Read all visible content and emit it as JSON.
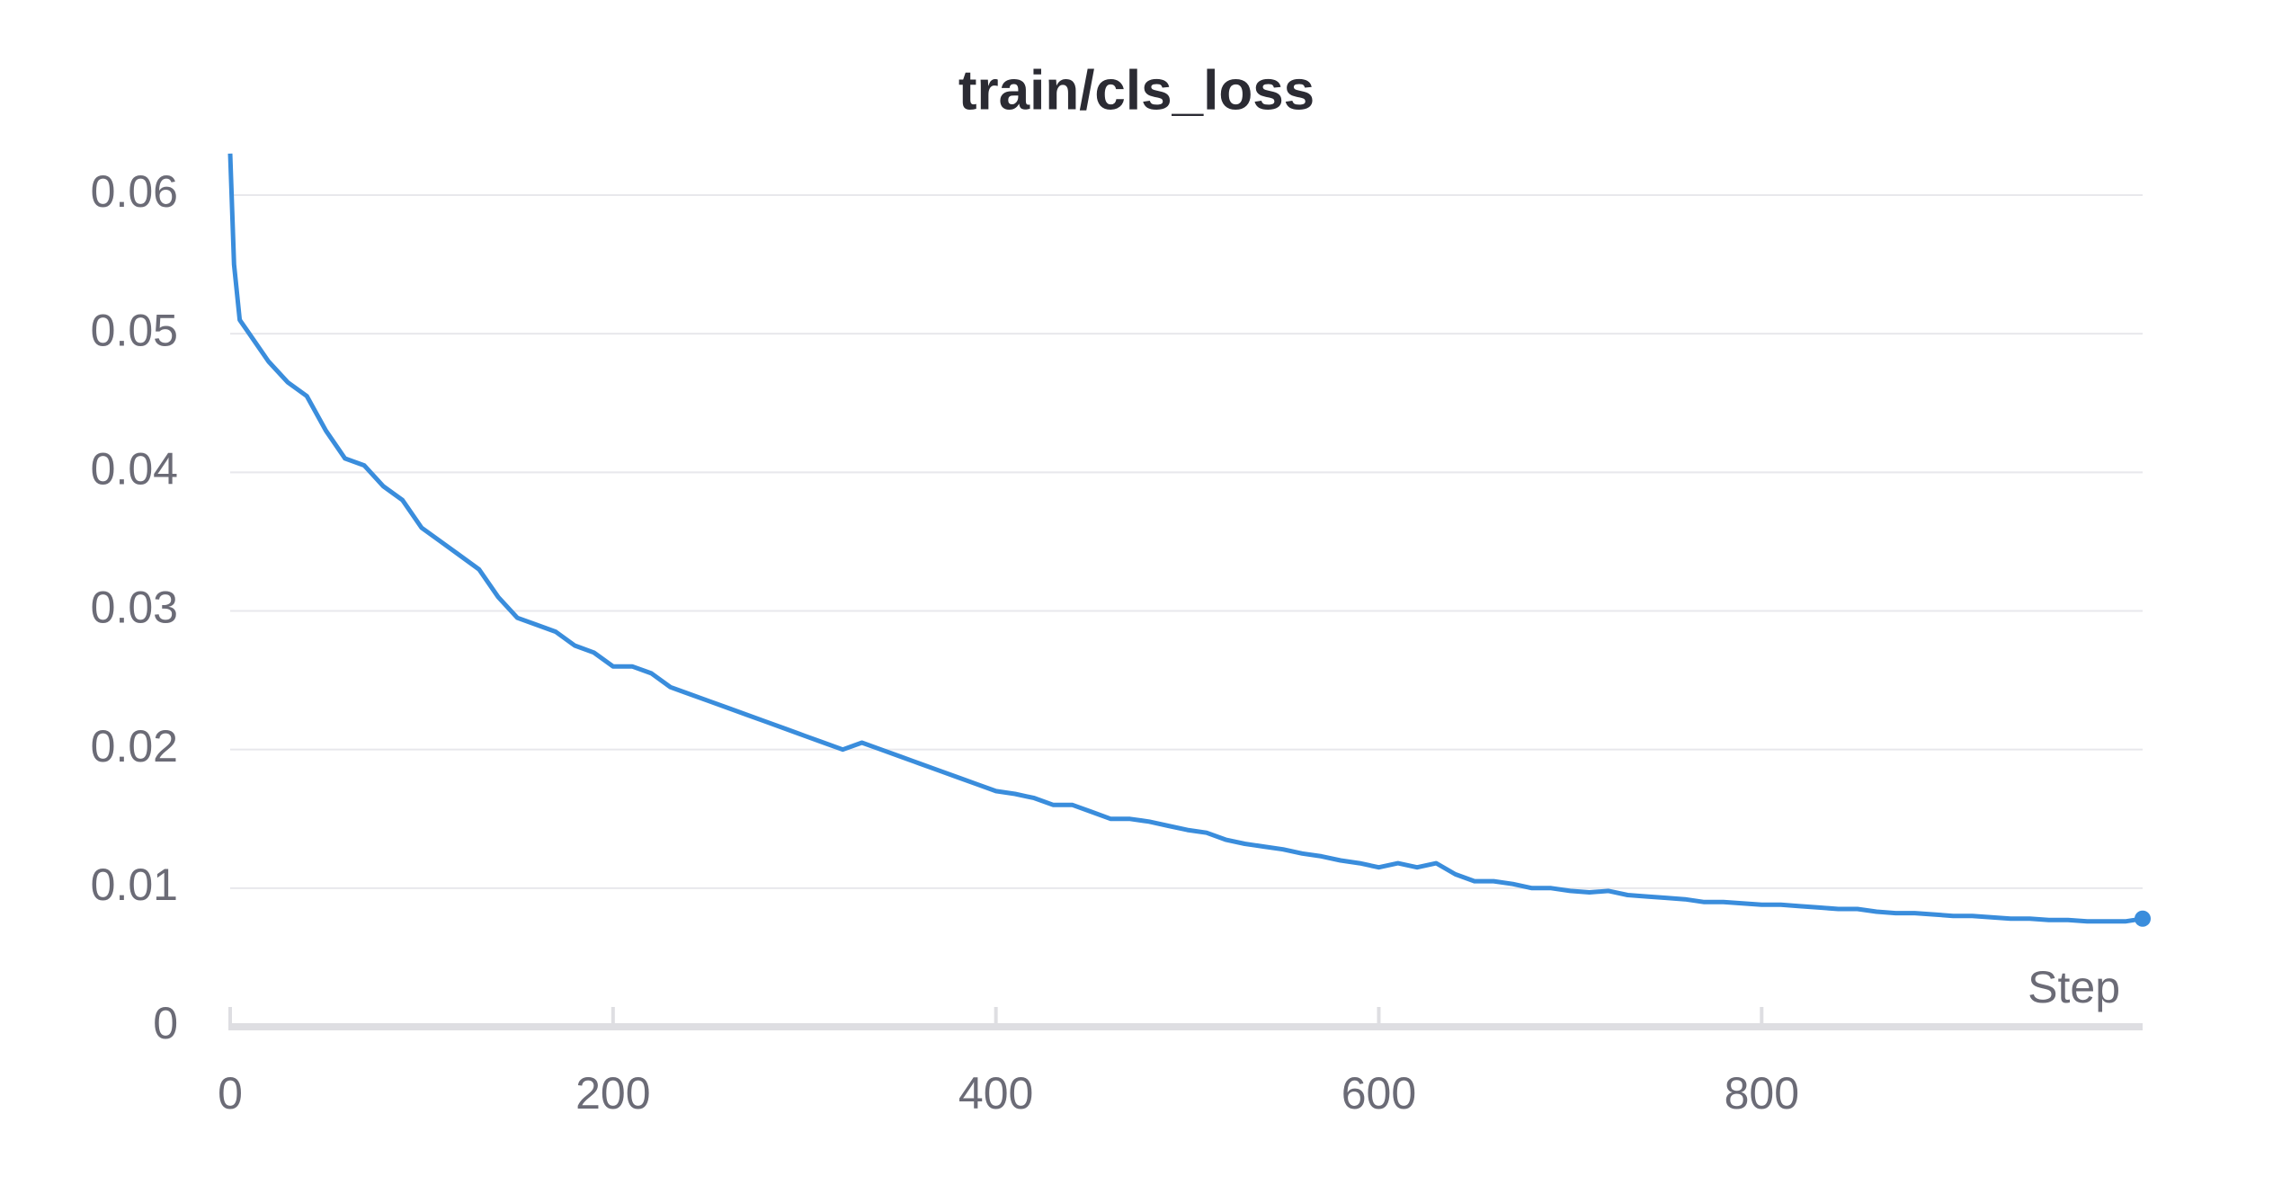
{
  "chart_data": {
    "type": "line",
    "title": "train/cls_loss",
    "x_label": "Step",
    "x": [
      0,
      2,
      5,
      10,
      20,
      30,
      40,
      50,
      60,
      70,
      80,
      90,
      100,
      110,
      120,
      130,
      140,
      150,
      160,
      170,
      180,
      190,
      200,
      210,
      220,
      230,
      240,
      250,
      260,
      270,
      280,
      290,
      300,
      310,
      320,
      330,
      340,
      350,
      360,
      370,
      380,
      390,
      400,
      410,
      420,
      430,
      440,
      450,
      460,
      470,
      480,
      490,
      500,
      510,
      520,
      530,
      540,
      550,
      560,
      570,
      580,
      590,
      600,
      610,
      620,
      630,
      640,
      650,
      660,
      670,
      680,
      690,
      700,
      710,
      720,
      730,
      740,
      750,
      760,
      770,
      780,
      790,
      800,
      810,
      820,
      830,
      840,
      850,
      860,
      870,
      880,
      890,
      900,
      910,
      920,
      930,
      940,
      950,
      960,
      970,
      980,
      990,
      999
    ],
    "values": [
      0.063,
      0.055,
      0.051,
      0.05,
      0.048,
      0.0465,
      0.0455,
      0.043,
      0.041,
      0.0405,
      0.039,
      0.038,
      0.036,
      0.035,
      0.034,
      0.033,
      0.031,
      0.0295,
      0.029,
      0.0285,
      0.0275,
      0.027,
      0.026,
      0.026,
      0.0255,
      0.0245,
      0.024,
      0.0235,
      0.023,
      0.0225,
      0.022,
      0.0215,
      0.021,
      0.0205,
      0.02,
      0.0205,
      0.02,
      0.0195,
      0.019,
      0.0185,
      0.018,
      0.0175,
      0.017,
      0.0168,
      0.0165,
      0.016,
      0.016,
      0.0155,
      0.015,
      0.015,
      0.0148,
      0.0145,
      0.0142,
      0.014,
      0.0135,
      0.0132,
      0.013,
      0.0128,
      0.0125,
      0.0123,
      0.012,
      0.0118,
      0.0115,
      0.0118,
      0.0115,
      0.0118,
      0.011,
      0.0105,
      0.0105,
      0.0103,
      0.01,
      0.01,
      0.0098,
      0.0097,
      0.0098,
      0.0095,
      0.0094,
      0.0093,
      0.0092,
      0.009,
      0.009,
      0.0089,
      0.0088,
      0.0088,
      0.0087,
      0.0086,
      0.0085,
      0.0085,
      0.0083,
      0.0082,
      0.0082,
      0.0081,
      0.008,
      0.008,
      0.0079,
      0.0078,
      0.0078,
      0.0077,
      0.0077,
      0.0076,
      0.0076,
      0.0076,
      0.0078
    ],
    "color": "#3a8ddc",
    "xlim": [
      0,
      999
    ],
    "xticks": [
      0,
      200,
      400,
      600,
      800
    ],
    "ylim": [
      0,
      0.06
    ],
    "yticks": [
      0,
      0.01,
      0.02,
      0.03,
      0.04,
      0.05,
      0.06
    ],
    "grid": true
  }
}
